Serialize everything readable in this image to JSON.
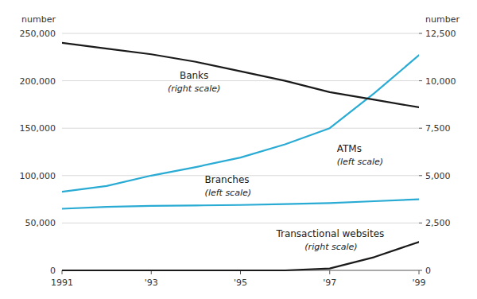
{
  "chart_data": {
    "type": "line",
    "x": [
      1991,
      1992,
      1993,
      1994,
      1995,
      1996,
      1997,
      1998,
      1999
    ],
    "xlim": [
      1991,
      1999
    ],
    "xticks": [
      1991,
      {
        "value": 1993,
        "label": "'93"
      },
      {
        "value": 1995,
        "label": "'95"
      },
      {
        "value": 1997,
        "label": "'97"
      },
      {
        "value": 1999,
        "label": "'99"
      }
    ],
    "ylim": [
      0,
      250000
    ],
    "yticks": [
      0,
      {
        "value": 50000,
        "label": "50,000"
      },
      {
        "value": 100000,
        "label": "100,000"
      },
      {
        "value": 150000,
        "label": "150,000"
      },
      {
        "value": 200000,
        "label": "200,000"
      },
      {
        "value": 250000,
        "label": "250,000"
      }
    ],
    "y2lim": [
      0,
      12500
    ],
    "y2ticks": [
      0,
      {
        "value": 2500,
        "label": "2,500"
      },
      {
        "value": 5000,
        "label": "5,000"
      },
      {
        "value": 7500,
        "label": "7,500"
      },
      {
        "value": 10000,
        "label": "10,000"
      },
      {
        "value": 12500,
        "label": "12,500"
      }
    ],
    "ylabel": "number",
    "y2label": "number",
    "grid": true,
    "series": [
      {
        "name": "ATMs",
        "color": "#29ABD4",
        "values": [
          83000,
          89000,
          100000,
          109000,
          119000,
          133000,
          150000,
          187000,
          227000
        ]
      },
      {
        "name": "Branches",
        "color": "#29ABD4",
        "values": [
          65000,
          67000,
          68000,
          68500,
          69000,
          70000,
          71000,
          73000,
          75000
        ]
      },
      {
        "name": "Banks",
        "color": "#1a1a1a",
        "axis": "y2",
        "values": [
          12000,
          11700,
          11400,
          11000,
          10500,
          10000,
          9400,
          9000,
          8600
        ]
      },
      {
        "name": "Transactional websites",
        "color": "#1a1a1a",
        "axis": "y2",
        "values": [
          0,
          0,
          0,
          0,
          0,
          0,
          100,
          700,
          1500
        ]
      }
    ],
    "annotations": [
      "(left scale)",
      "(left scale)",
      "(right scale)",
      "(right scale)"
    ]
  }
}
